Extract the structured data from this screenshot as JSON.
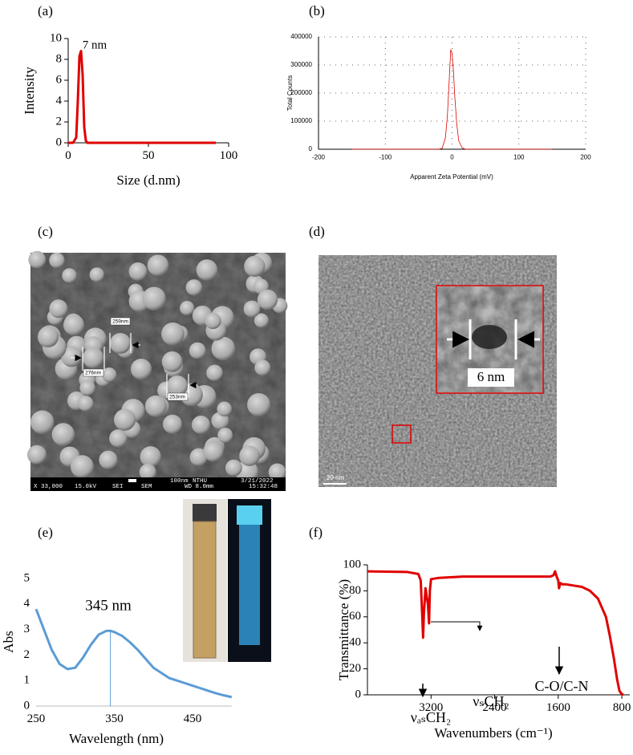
{
  "panel_labels": [
    "(a)",
    "(b)",
    "(c)",
    "(d)",
    "(e)",
    "(f)"
  ],
  "chart_data": [
    {
      "type": "line",
      "x_label": "Size (d.nm)",
      "y_label": "Intensity",
      "annotations": [
        "7 nm"
      ],
      "x": [
        0,
        3,
        5,
        6,
        7,
        8,
        9,
        10,
        11,
        12,
        20,
        50,
        92
      ],
      "values": [
        0,
        0,
        0.5,
        4,
        8.3,
        8.8,
        6.5,
        1.5,
        0.2,
        0,
        0,
        0,
        0
      ],
      "color": "#e00000",
      "xlim": [
        0,
        100
      ],
      "xticks": [
        0,
        50,
        100
      ],
      "ylim": [
        0,
        10
      ],
      "yticks": [
        0,
        2,
        4,
        6,
        8,
        10
      ],
      "grid": false
    },
    {
      "type": "line",
      "x_label": "Apparent Zeta Potential (mV)",
      "y_label": "Total Counts",
      "annotations": [],
      "x": [
        -150,
        -20,
        -15,
        -10,
        -7,
        -4,
        -2,
        0,
        2,
        4,
        7,
        10,
        15,
        20,
        150
      ],
      "values": [
        0,
        0,
        3000,
        40000,
        120000,
        260000,
        355000,
        340000,
        280000,
        190000,
        90000,
        30000,
        5000,
        0,
        0
      ],
      "color": "#e00000",
      "xlim": [
        -200,
        200
      ],
      "xticks": [
        -200,
        -100,
        0,
        100,
        200
      ],
      "ylim": [
        0,
        400000
      ],
      "yticks": [
        0,
        100000,
        200000,
        300000,
        400000
      ],
      "grid": true
    },
    {
      "type": "line",
      "x_label": "Wavelength (nm)",
      "y_label": "Abs",
      "annotations": [
        "345 nm"
      ],
      "marker_x": 345,
      "x": [
        250,
        260,
        270,
        280,
        290,
        300,
        310,
        320,
        330,
        340,
        345,
        350,
        360,
        370,
        380,
        390,
        400,
        410,
        420,
        430,
        440,
        450,
        460,
        470,
        480,
        490,
        500
      ],
      "values": [
        3.8,
        3.0,
        2.2,
        1.65,
        1.45,
        1.5,
        1.9,
        2.4,
        2.8,
        2.95,
        2.95,
        2.9,
        2.75,
        2.5,
        2.2,
        1.85,
        1.5,
        1.3,
        1.1,
        1.0,
        0.9,
        0.8,
        0.7,
        0.6,
        0.5,
        0.42,
        0.35
      ],
      "color": "#5b9bd5",
      "xlim": [
        250,
        500
      ],
      "xticks": [
        250,
        350,
        450
      ],
      "ylim": [
        0,
        5
      ],
      "yticks": [
        0,
        1,
        2,
        3,
        4,
        5
      ],
      "grid": false
    },
    {
      "type": "line",
      "x_label": "Wavenumbers (cm⁻¹)",
      "y_label": "Transmittance (%)",
      "annotations": [
        "νₐₛCH₂",
        "νₛCH₂",
        "C-O/C-N"
      ],
      "x": [
        4000,
        3500,
        3360,
        3330,
        3310,
        3300,
        3290,
        3270,
        3240,
        3225,
        3215,
        3200,
        3100,
        2800,
        2400,
        2000,
        1700,
        1660,
        1640,
        1620,
        1600,
        1590,
        1575,
        1550,
        1500,
        1400,
        1300,
        1200,
        1100,
        1000,
        950,
        900,
        860,
        830,
        800,
        780
      ],
      "values": [
        95,
        94.5,
        93,
        88,
        60,
        44,
        62,
        82,
        70,
        55,
        80,
        89,
        90,
        91,
        91,
        91,
        91,
        92,
        95,
        91,
        88,
        82,
        86,
        85,
        85,
        84,
        83,
        80,
        74,
        60,
        45,
        28,
        12,
        3,
        0.5,
        0
      ],
      "color": "#e00000",
      "xlim": [
        4000,
        700
      ],
      "xticks": [
        3200,
        2400,
        1600,
        800
      ],
      "ylim": [
        0,
        100
      ],
      "yticks": [
        0,
        20,
        40,
        60,
        80,
        100
      ],
      "grid": false
    }
  ],
  "images": {
    "sem": {
      "sizes": [
        "259nm",
        "276nm",
        "253nm"
      ],
      "info": [
        "X 33,000",
        "15.0kV",
        "SEI",
        "SEM",
        "100nm",
        "NTHU",
        "WD 8.0mm",
        "3/21/2022",
        "15:32:48"
      ]
    },
    "tem": {
      "inset_label": "6 nm",
      "scale_bar": "20 nm"
    }
  }
}
